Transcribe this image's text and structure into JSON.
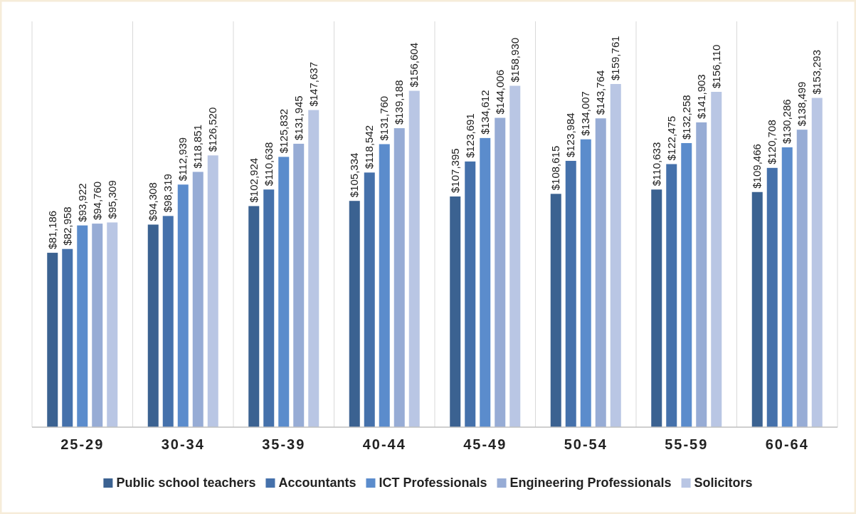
{
  "chart_data": {
    "type": "bar",
    "categories": [
      "25-29",
      "30-34",
      "35-39",
      "40-44",
      "45-49",
      "50-54",
      "55-59",
      "60-64"
    ],
    "series": [
      {
        "name": "Public school teachers",
        "color": "#3b6291",
        "values": [
          81186,
          94308,
          102924,
          105334,
          107395,
          108615,
          110633,
          109466
        ],
        "value_labels": [
          "$81,186",
          "$94,308",
          "$102,924",
          "$105,334",
          "$107,395",
          "$108,615",
          "$110,633",
          "$109,466"
        ]
      },
      {
        "name": "Accountants",
        "color": "#4571ab",
        "values": [
          82958,
          98319,
          110638,
          118542,
          123691,
          123984,
          122475,
          120708
        ],
        "value_labels": [
          "$82,958",
          "$98,319",
          "$110,638",
          "$118,542",
          "$123,691",
          "$123,984",
          "$122,475",
          "$120,708"
        ]
      },
      {
        "name": "ICT Professionals",
        "color": "#5b8ccc",
        "values": [
          93922,
          112939,
          125832,
          131760,
          134612,
          134007,
          132258,
          130286
        ],
        "value_labels": [
          "$93,922",
          "$112,939",
          "$125,832",
          "$131,760",
          "$134,612",
          "$134,007",
          "$132,258",
          "$130,286"
        ]
      },
      {
        "name": "Engineering Professionals",
        "color": "#97acd5",
        "values": [
          94760,
          118851,
          131945,
          139188,
          144006,
          143764,
          141903,
          138499
        ],
        "value_labels": [
          "$94,760",
          "$118,851",
          "$131,945",
          "$139,188",
          "$144,006",
          "$143,764",
          "$141,903",
          "$138,499"
        ]
      },
      {
        "name": "Solicitors",
        "color": "#b9c6e4",
        "values": [
          95309,
          126520,
          147637,
          156604,
          158930,
          159761,
          156110,
          153293
        ],
        "value_labels": [
          "$95,309",
          "$126,520",
          "$147,637",
          "$156,604",
          "$158,930",
          "$159,761",
          "$156,110",
          "$153,293"
        ]
      }
    ],
    "grid": "x",
    "legend": "bottom"
  }
}
